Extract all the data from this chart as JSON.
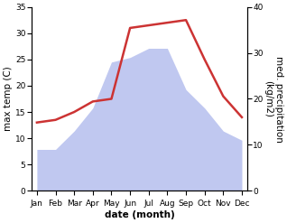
{
  "months": [
    "Jan",
    "Feb",
    "Mar",
    "Apr",
    "May",
    "Jun",
    "Jul",
    "Aug",
    "Sep",
    "Oct",
    "Nov",
    "Dec"
  ],
  "month_positions": [
    0,
    1,
    2,
    3,
    4,
    5,
    6,
    7,
    8,
    9,
    10,
    11
  ],
  "temperature": [
    13.0,
    13.5,
    15.0,
    17.0,
    17.5,
    31.0,
    31.5,
    32.0,
    32.5,
    25.0,
    18.0,
    14.0
  ],
  "precipitation": [
    9,
    9,
    13,
    18,
    28,
    29,
    31,
    31,
    22,
    18,
    13,
    11
  ],
  "temp_color": "#cc3333",
  "precip_color": "#c0c8f0",
  "left_ylim": [
    0,
    35
  ],
  "right_ylim": [
    0,
    40
  ],
  "left_yticks": [
    0,
    5,
    10,
    15,
    20,
    25,
    30,
    35
  ],
  "right_yticks": [
    0,
    10,
    20,
    30,
    40
  ],
  "xlabel": "date (month)",
  "ylabel_left": "max temp (C)",
  "ylabel_right": "med. precipitation\n(kg/m2)",
  "temp_linewidth": 1.8,
  "bg_color": "#ffffff",
  "tick_label_fontsize": 6.5,
  "axis_label_fontsize": 7.5
}
